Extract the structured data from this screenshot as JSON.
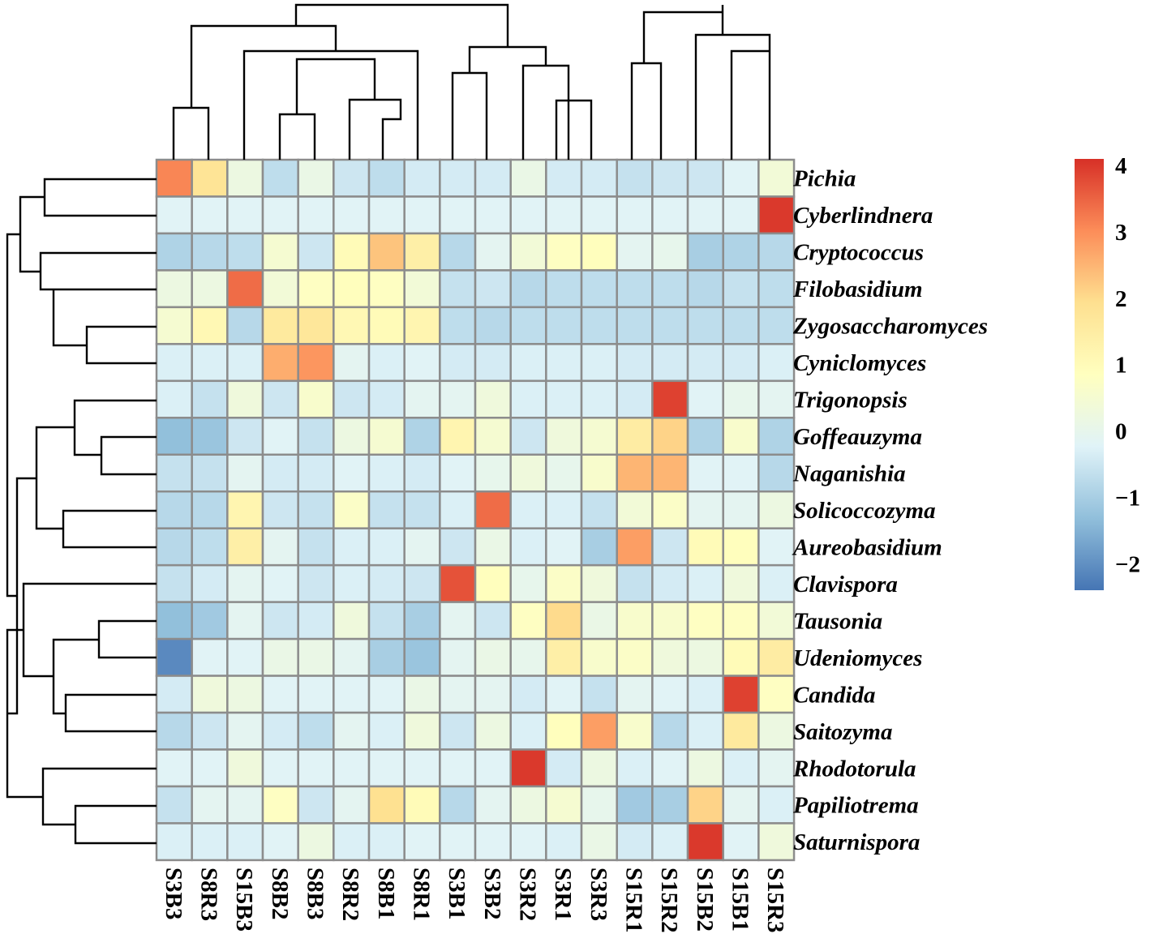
{
  "chart_data": {
    "type": "heatmap",
    "title": "",
    "columns": [
      "S3B3",
      "S8R3",
      "S15B3",
      "S8B2",
      "S8B3",
      "S8R2",
      "S8B1",
      "S8R1",
      "S3B1",
      "S3B2",
      "S3R2",
      "S3R1",
      "S3R3",
      "S15R1",
      "S15R2",
      "S15B2",
      "S15B1",
      "S15R3"
    ],
    "rows": [
      "Pichia",
      "Cyberlindnera",
      "Cryptococcus",
      "Filobasidium",
      "Zygosaccharomyces",
      "Cyniclomyces",
      "Trigonopsis",
      "Goffeauzyma",
      "Naganishia",
      "Solicoccozyma",
      "Aureobasidium",
      "Clavispora",
      "Tausonia",
      "Udeniomyces",
      "Candida",
      "Saitozyma",
      "Rhodotorula",
      "Papiliotrema",
      "Saturnispora"
    ],
    "values": [
      [
        3.1,
        1.8,
        0.2,
        -0.7,
        0.1,
        -0.5,
        -0.7,
        -0.4,
        -0.4,
        -0.4,
        0.1,
        -0.4,
        -0.4,
        -0.6,
        -0.5,
        -0.5,
        -0.2,
        0.4
      ],
      [
        -0.2,
        -0.2,
        -0.2,
        -0.2,
        -0.2,
        -0.2,
        -0.2,
        -0.2,
        -0.2,
        -0.2,
        -0.2,
        -0.2,
        -0.2,
        -0.2,
        -0.2,
        -0.2,
        -0.2,
        4.0
      ],
      [
        -0.9,
        -0.8,
        -0.7,
        0.5,
        -0.5,
        1.0,
        2.3,
        1.4,
        -0.8,
        -0.1,
        0.4,
        0.8,
        0.9,
        -0.1,
        0,
        -1.0,
        -0.9,
        -0.8
      ],
      [
        0.2,
        0.2,
        3.4,
        0.4,
        0.8,
        0.9,
        0.8,
        0.4,
        -0.6,
        -0.5,
        -0.8,
        -0.7,
        -0.7,
        -0.7,
        -0.7,
        -0.8,
        -0.6,
        -0.7
      ],
      [
        0.5,
        1.1,
        -0.8,
        1.6,
        1.7,
        1.1,
        1.0,
        1.2,
        -0.7,
        -0.8,
        -0.7,
        -0.7,
        -0.7,
        -0.7,
        -0.7,
        -0.7,
        -0.7,
        -0.7
      ],
      [
        -0.3,
        -0.3,
        -0.3,
        2.6,
        2.9,
        -0.1,
        -0.3,
        -0.2,
        -0.4,
        -0.4,
        -0.3,
        -0.3,
        -0.3,
        -0.4,
        -0.4,
        -0.4,
        -0.4,
        -0.3
      ],
      [
        -0.3,
        -0.6,
        0.3,
        -0.5,
        0.6,
        -0.5,
        -0.4,
        -0.1,
        -0.1,
        0.3,
        -0.3,
        -0.3,
        -0.3,
        -0.4,
        3.9,
        -0.2,
        0,
        -0.1
      ],
      [
        -1.3,
        -1.2,
        -0.5,
        -0.2,
        -0.6,
        0.2,
        0.5,
        -0.9,
        1.2,
        0.5,
        -0.5,
        0.3,
        0.5,
        1.5,
        2.1,
        -0.9,
        0.6,
        -0.9
      ],
      [
        -0.6,
        -0.6,
        -0.1,
        -0.4,
        -0.4,
        -0.2,
        -0.3,
        -0.4,
        -0.2,
        0,
        0.3,
        0,
        0.6,
        2.5,
        2.5,
        -0.2,
        -0.2,
        -0.8
      ],
      [
        -0.8,
        -0.8,
        1.2,
        -0.5,
        -0.6,
        0.7,
        -0.6,
        -0.6,
        -0.3,
        3.4,
        -0.3,
        -0.3,
        -0.6,
        0.4,
        0.7,
        -0.1,
        -0.1,
        0.2
      ],
      [
        -0.8,
        -0.7,
        1.4,
        -0.1,
        -0.6,
        -0.3,
        -0.3,
        -0.1,
        -0.5,
        0.1,
        -0.3,
        -0.2,
        -1.0,
        2.8,
        -0.5,
        1.0,
        0.9,
        -0.2
      ],
      [
        -0.6,
        -0.4,
        -0.1,
        -0.2,
        -0.5,
        -0.3,
        -0.4,
        -0.5,
        3.7,
        0.9,
        0,
        0.7,
        0.3,
        -0.6,
        -0.4,
        -0.3,
        0.3,
        -0.3
      ],
      [
        -1.3,
        -1.1,
        -0.1,
        -0.5,
        -0.4,
        0.3,
        -0.6,
        -1.0,
        -0.1,
        -0.5,
        0.8,
        2.0,
        0.1,
        0.6,
        0.6,
        0.8,
        0.8,
        0.4
      ],
      [
        -2.1,
        -0.2,
        -0.2,
        0.1,
        0.1,
        -0.1,
        -1.0,
        -1.2,
        -0.1,
        0.1,
        0,
        1.4,
        0.6,
        0.7,
        0.3,
        0.2,
        1.0,
        1.5
      ],
      [
        -0.4,
        0.3,
        0.2,
        -0.2,
        -0.2,
        -0.2,
        -0.2,
        0.1,
        -0.1,
        -0.1,
        -0.4,
        -0.2,
        -0.6,
        -0.1,
        -0.2,
        -0.3,
        3.9,
        0.8
      ],
      [
        -0.8,
        -0.5,
        -0.1,
        -0.4,
        -0.7,
        -0.1,
        -0.3,
        0.3,
        -0.5,
        0.2,
        -0.3,
        0.9,
        2.8,
        0.6,
        -0.8,
        -0.3,
        1.6,
        0.2
      ],
      [
        -0.2,
        -0.2,
        0.3,
        -0.2,
        -0.2,
        -0.2,
        -0.2,
        -0.2,
        -0.2,
        -0.2,
        4.0,
        -0.4,
        0.2,
        -0.3,
        -0.2,
        0.2,
        -0.3,
        -0.1
      ],
      [
        -0.6,
        -0.1,
        -0.1,
        0.8,
        -0.5,
        -0.1,
        1.9,
        1.0,
        -0.8,
        -0.1,
        0.2,
        0.5,
        0,
        -1.1,
        -1.0,
        2.1,
        -0.1,
        -0.3
      ],
      [
        -0.3,
        -0.3,
        -0.3,
        -0.2,
        0.2,
        -0.3,
        -0.3,
        -0.2,
        -0.2,
        -0.2,
        -0.2,
        -0.3,
        0.1,
        -0.4,
        -0.3,
        4.0,
        -0.2,
        0.3
      ]
    ],
    "colorbar": {
      "min": -2.4,
      "max": 4.1,
      "ticks": [
        4,
        3,
        2,
        1,
        0,
        -1,
        -2
      ],
      "tick_labels": [
        "4",
        "3",
        "2",
        "1",
        "0",
        "−1",
        "−2"
      ]
    },
    "colormap": [
      "#4575b4",
      "#91bfdb",
      "#e0f3f8",
      "#ffffbf",
      "#fee090",
      "#fc8d59",
      "#d73027"
    ],
    "cell_border_color": "#8c8c8c",
    "row_dendrogram": "left",
    "column_dendrogram": "top",
    "legend_position": "right",
    "xlabel": "",
    "ylabel": ""
  }
}
